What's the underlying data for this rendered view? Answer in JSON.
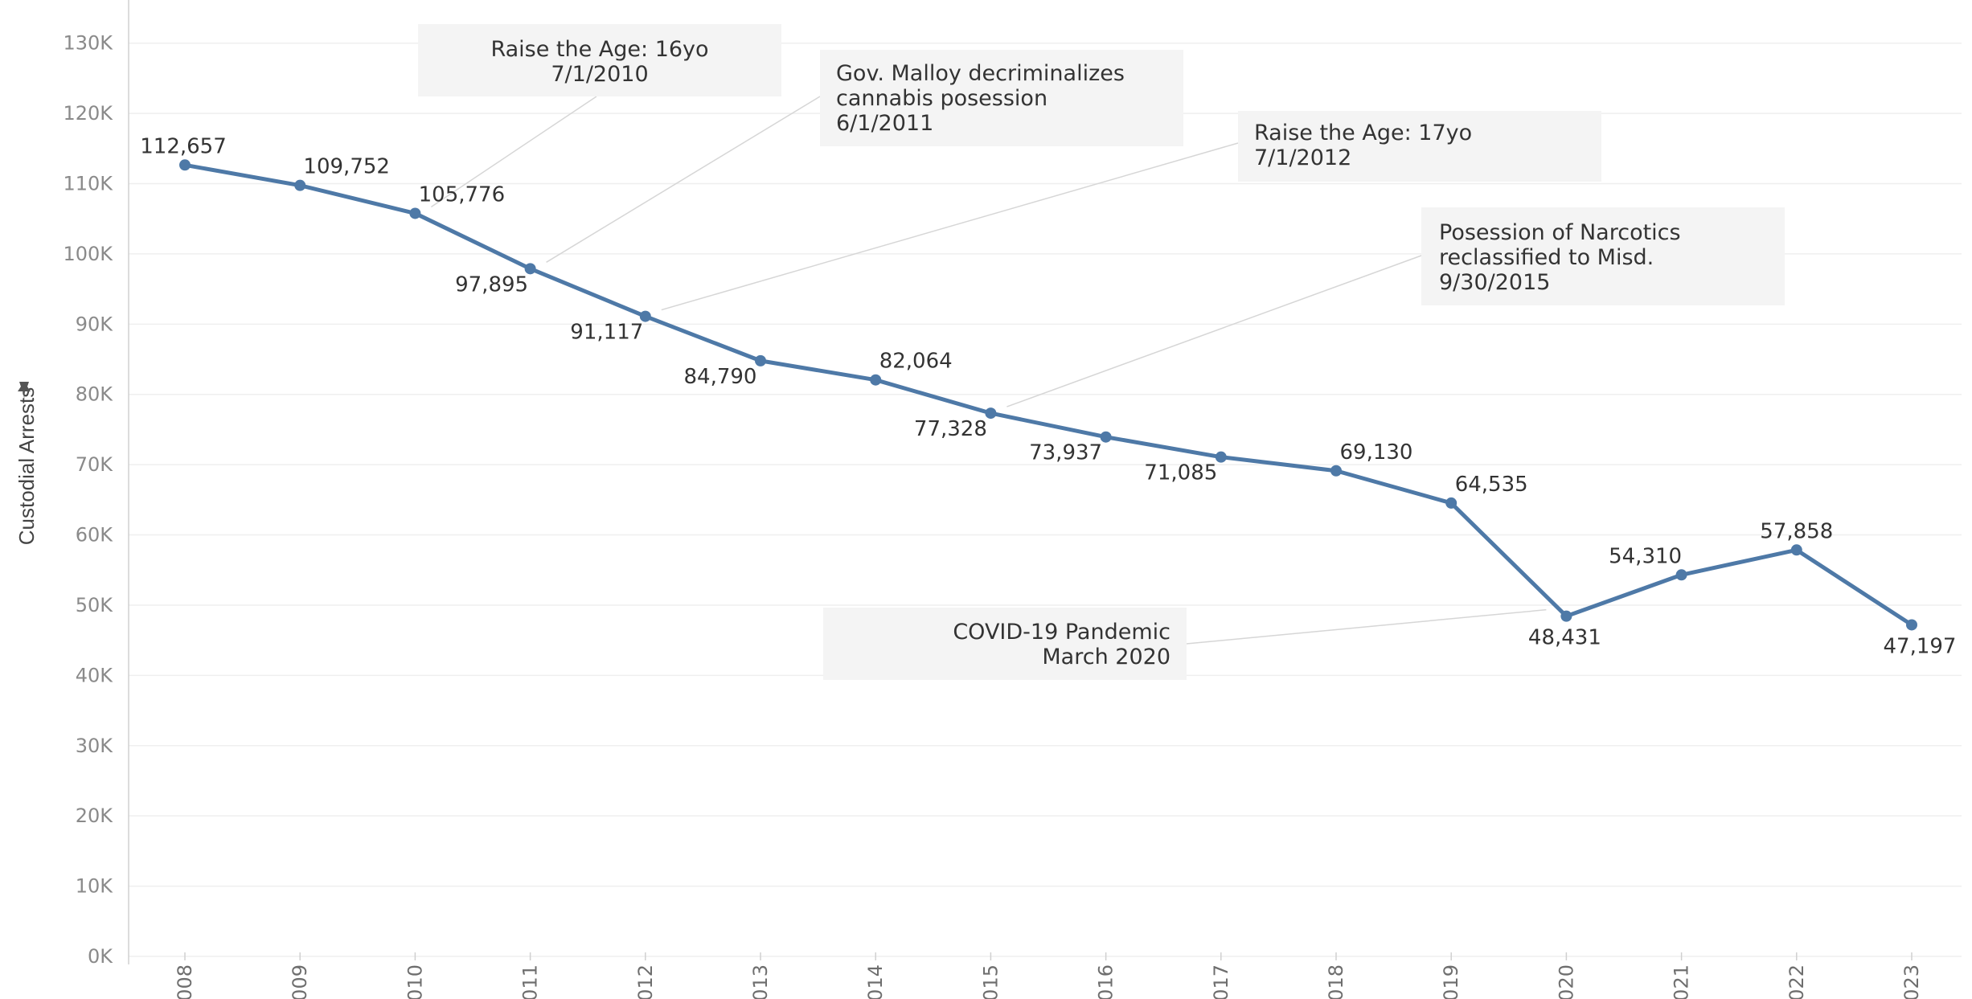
{
  "chart_data": {
    "type": "line",
    "ylabel": "Custodial Arrests",
    "ylim": [
      0,
      135000
    ],
    "yticks": [
      0,
      10000,
      20000,
      30000,
      40000,
      50000,
      60000,
      70000,
      80000,
      90000,
      100000,
      110000,
      120000,
      130000
    ],
    "ytick_labels": [
      "0K",
      "10K",
      "20K",
      "30K",
      "40K",
      "50K",
      "60K",
      "70K",
      "80K",
      "90K",
      "100K",
      "110K",
      "120K",
      "130K"
    ],
    "categories": [
      "2008",
      "2009",
      "2010",
      "2011",
      "2012",
      "2013",
      "2014",
      "2015",
      "2016",
      "2017",
      "2018",
      "2019",
      "2020",
      "2021",
      "2022",
      "2023"
    ],
    "series": [
      {
        "values": [
          112657,
          109752,
          105776,
          97895,
          91117,
          84790,
          82064,
          77328,
          73937,
          71085,
          69130,
          64535,
          48431,
          54310,
          57858,
          47197
        ],
        "labels": [
          "112,657",
          "109,752",
          "105,776",
          "97,895",
          "91,117",
          "84,790",
          "82,064",
          "77,328",
          "73,937",
          "71,085",
          "69,130",
          "64,535",
          "48,431",
          "54,310",
          "57,858",
          "47,197"
        ],
        "color": "#4e79a7"
      }
    ],
    "grid": true,
    "annotations": [
      {
        "lines": [
          "Raise the Age: 16yo",
          "7/1/2010"
        ],
        "category": "2010",
        "value": 105776
      },
      {
        "lines": [
          "Gov. Malloy decriminalizes",
          "cannabis posession",
          "6/1/2011"
        ],
        "category": "2011",
        "value": 97895
      },
      {
        "lines": [
          "Raise the Age: 17yo",
          "7/1/2012"
        ],
        "category": "2012",
        "value": 91117
      },
      {
        "lines": [
          "Posession of Narcotics",
          "reclassified to Misd.",
          "9/30/2015"
        ],
        "category": "2015",
        "value": 77328
      },
      {
        "lines": [
          "COVID-19 Pandemic",
          "March 2020"
        ],
        "category": "2020",
        "value": 48431
      }
    ]
  },
  "colors": {
    "line": "#4e79a7",
    "annotation_box": "#f4f4f4",
    "leader": "#d6d6d6",
    "pin_icon": "#555555"
  },
  "icons": {
    "axis_pin": "pin-icon"
  }
}
